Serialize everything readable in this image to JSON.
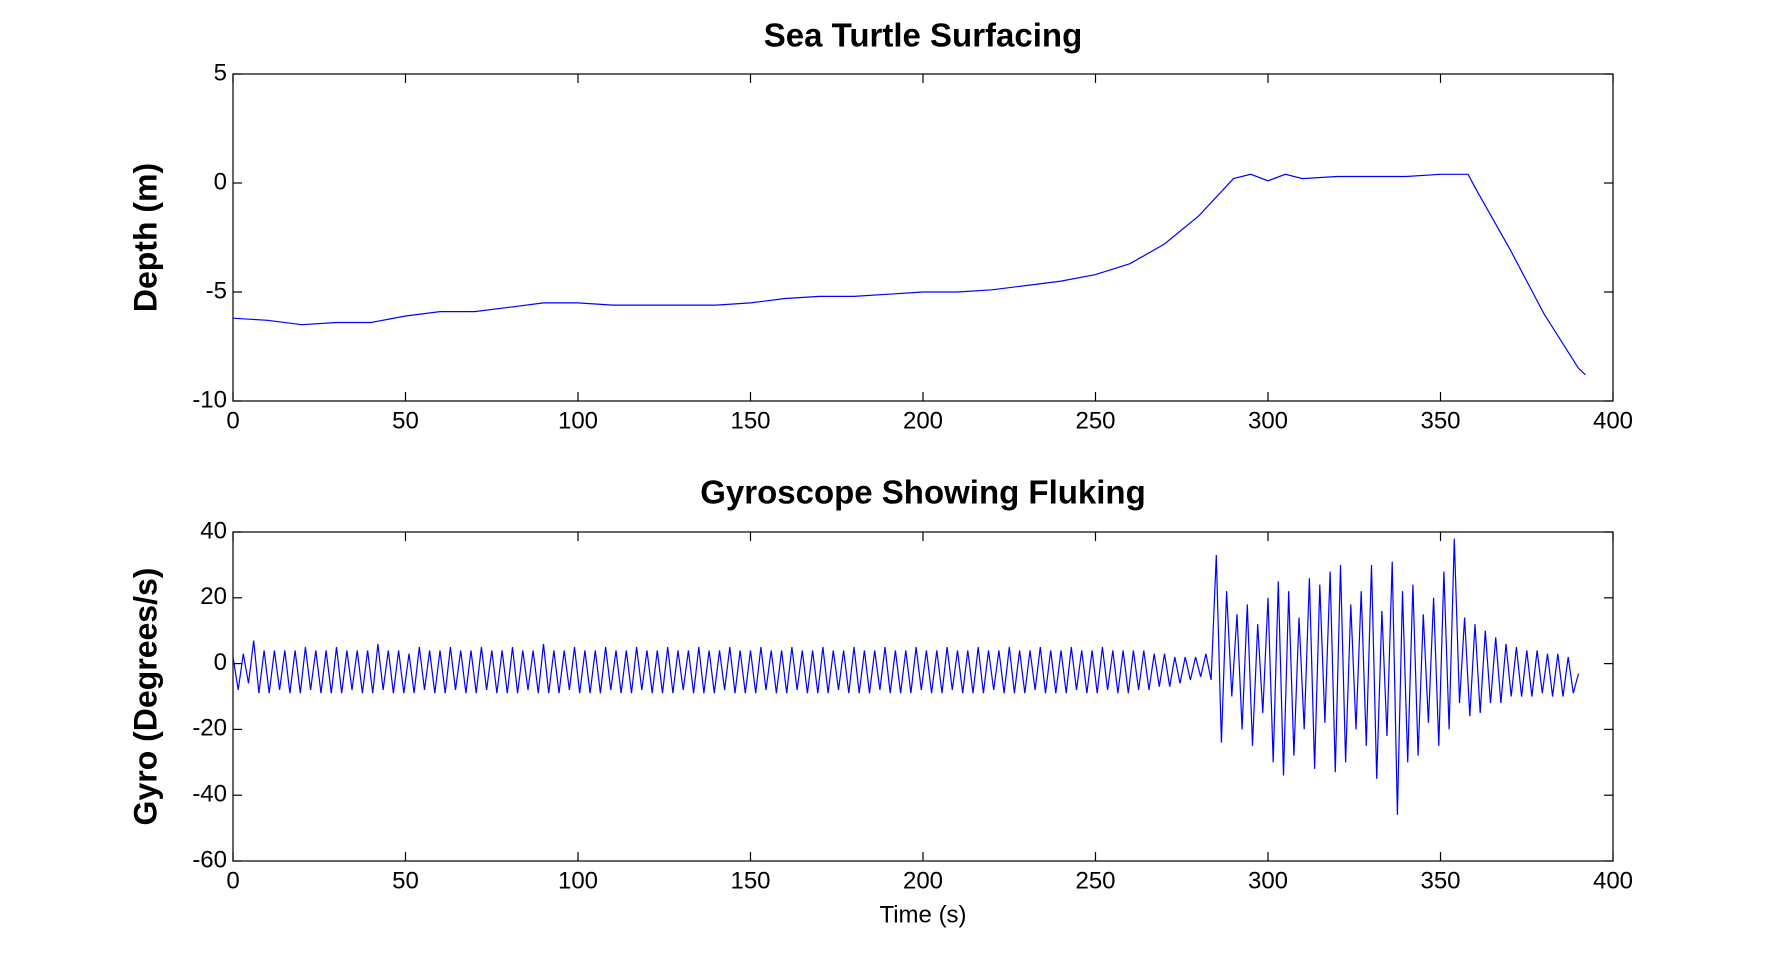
{
  "chart_data": [
    {
      "type": "line",
      "title": "Sea Turtle Surfacing",
      "ylabel": "Depth (m)",
      "color": "#0000ff",
      "x": [
        0,
        10,
        20,
        30,
        40,
        50,
        60,
        70,
        80,
        90,
        100,
        110,
        120,
        130,
        140,
        150,
        160,
        170,
        180,
        190,
        200,
        210,
        220,
        230,
        240,
        250,
        260,
        270,
        280,
        290,
        295,
        300,
        305,
        310,
        320,
        330,
        340,
        350,
        358,
        360,
        370,
        380,
        390,
        392
      ],
      "values": [
        -6.2,
        -6.3,
        -6.5,
        -6.4,
        -6.4,
        -6.1,
        -5.9,
        -5.9,
        -5.7,
        -5.5,
        -5.5,
        -5.6,
        -5.6,
        -5.6,
        -5.6,
        -5.5,
        -5.3,
        -5.2,
        -5.2,
        -5.1,
        -5,
        -5,
        -4.9,
        -4.7,
        -4.5,
        -4.2,
        -3.7,
        -2.8,
        -1.5,
        0.2,
        0.4,
        0.1,
        0.4,
        0.2,
        0.3,
        0.3,
        0.3,
        0.4,
        0.4,
        -0.2,
        -3,
        -6,
        -8.5,
        -8.8
      ],
      "xlim": [
        0,
        400
      ],
      "xticks": [
        0,
        50,
        100,
        150,
        200,
        250,
        300,
        350,
        400
      ],
      "ylim": [
        -10,
        5
      ],
      "yticks": [
        -10,
        -5,
        0,
        5
      ]
    },
    {
      "type": "line",
      "title": "Gyroscope Showing Fluking",
      "ylabel": "Gyro (Degrees/s)",
      "xlabel": "Time (s)",
      "color": "#0000ff",
      "x": [
        0,
        1.5,
        3,
        4.5,
        6,
        7.5,
        9,
        10.5,
        12,
        13.5,
        15,
        16.5,
        18,
        19.5,
        21,
        22.5,
        24,
        25.5,
        27,
        28.5,
        30,
        31.5,
        33,
        34.5,
        36,
        37.5,
        39,
        40.5,
        42,
        43.5,
        45,
        46.5,
        48,
        49.5,
        51,
        52.5,
        54,
        55.5,
        57,
        58.5,
        60,
        61.5,
        63,
        64.5,
        66,
        67.5,
        69,
        70.5,
        72,
        73.5,
        75,
        76.5,
        78,
        79.5,
        81,
        82.5,
        84,
        85.5,
        87,
        88.5,
        90,
        91.5,
        93,
        94.5,
        96,
        97.5,
        99,
        100.5,
        102,
        103.5,
        105,
        106.5,
        108,
        109.5,
        111,
        112.5,
        114,
        115.5,
        117,
        118.5,
        120,
        121.5,
        123,
        124.5,
        126,
        127.5,
        129,
        130.5,
        132,
        133.5,
        135,
        136.5,
        138,
        139.5,
        141,
        142.5,
        144,
        145.5,
        147,
        148.5,
        150,
        151.5,
        153,
        154.5,
        156,
        157.5,
        159,
        160.5,
        162,
        163.5,
        165,
        166.5,
        168,
        169.5,
        171,
        172.5,
        174,
        175.5,
        177,
        178.5,
        180,
        181.5,
        183,
        184.5,
        186,
        187.5,
        189,
        190.5,
        192,
        193.5,
        195,
        196.5,
        198,
        199.5,
        201,
        202.5,
        204,
        205.5,
        207,
        208.5,
        210,
        211.5,
        213,
        214.5,
        216,
        217.5,
        219,
        220.5,
        222,
        223.5,
        225,
        226.5,
        228,
        229.5,
        231,
        232.5,
        234,
        235.5,
        237,
        238.5,
        240,
        241.5,
        243,
        244.5,
        246,
        247.5,
        249,
        250.5,
        252,
        253.5,
        255,
        256.5,
        258,
        259.5,
        261,
        262.5,
        264,
        265.5,
        267,
        268.5,
        270,
        271.5,
        273,
        274.5,
        276,
        277.5,
        279,
        280.5,
        282,
        283.5,
        285,
        286.5,
        288,
        289.5,
        291,
        292.5,
        294,
        295.5,
        297,
        298.5,
        300,
        301.5,
        303,
        304.5,
        306,
        307.5,
        309,
        310.5,
        312,
        313.5,
        315,
        316.5,
        318,
        319.5,
        321,
        322.5,
        324,
        325.5,
        327,
        328.5,
        330,
        331.5,
        333,
        334.5,
        336,
        337.5,
        339,
        340.5,
        342,
        343.5,
        345,
        346.5,
        348,
        349.5,
        351,
        352.5,
        354,
        355.5,
        357,
        358.5,
        360,
        361.5,
        363,
        364.5,
        366,
        367.5,
        369,
        370.5,
        372,
        373.5,
        375,
        376.5,
        378,
        379.5,
        381,
        382.5,
        384,
        385.5,
        387,
        388.5,
        390
      ],
      "values": [
        2,
        -8,
        3,
        -6,
        7,
        -9,
        4,
        -9,
        4,
        -8,
        4,
        -9,
        4,
        -9,
        5,
        -8,
        4,
        -9,
        4,
        -9,
        5,
        -9,
        4,
        -8,
        4,
        -9,
        4,
        -9,
        6,
        -8,
        4,
        -9,
        4,
        -9,
        3,
        -9,
        5,
        -8,
        4,
        -9,
        4,
        -9,
        5,
        -8,
        4,
        -9,
        4,
        -9,
        5,
        -8,
        4,
        -9,
        4,
        -9,
        5,
        -9,
        4,
        -8,
        4,
        -9,
        6,
        -9,
        4,
        -9,
        4,
        -8,
        5,
        -9,
        4,
        -9,
        4,
        -9,
        5,
        -8,
        4,
        -9,
        4,
        -9,
        5,
        -8,
        4,
        -9,
        4,
        -9,
        5,
        -9,
        4,
        -8,
        4,
        -9,
        5,
        -9,
        4,
        -9,
        4,
        -8,
        5,
        -9,
        4,
        -9,
        4,
        -9,
        5,
        -8,
        4,
        -9,
        4,
        -9,
        5,
        -8,
        4,
        -9,
        4,
        -9,
        5,
        -9,
        4,
        -8,
        4,
        -9,
        5,
        -9,
        4,
        -9,
        4,
        -8,
        5,
        -9,
        4,
        -9,
        4,
        -9,
        5,
        -8,
        4,
        -9,
        4,
        -9,
        5,
        -8,
        4,
        -9,
        4,
        -9,
        5,
        -9,
        4,
        -8,
        4,
        -9,
        5,
        -9,
        4,
        -9,
        4,
        -8,
        5,
        -9,
        4,
        -9,
        4,
        -9,
        5,
        -8,
        4,
        -9,
        4,
        -9,
        5,
        -8,
        4,
        -9,
        4,
        -9,
        4,
        -8,
        4,
        -8,
        3,
        -7,
        3,
        -7,
        2,
        -6,
        2,
        -5,
        2,
        -4,
        3,
        -5,
        33,
        -24,
        22,
        -10,
        15,
        -20,
        18,
        -25,
        12,
        -15,
        20,
        -30,
        25,
        -34,
        22,
        -28,
        14,
        -20,
        26,
        -32,
        24,
        -18,
        28,
        -33,
        30,
        -30,
        18,
        -20,
        22,
        -25,
        30,
        -35,
        16,
        -22,
        31,
        -46,
        22,
        -30,
        24,
        -28,
        15,
        -18,
        20,
        -25,
        28,
        -20,
        38,
        -12,
        14,
        -16,
        12,
        -15,
        10,
        -12,
        8,
        -12,
        6,
        -10,
        5,
        -10,
        4,
        -10,
        4,
        -9,
        3,
        -10,
        3,
        -10,
        2,
        -9,
        -3
      ],
      "xlim": [
        0,
        400
      ],
      "xticks": [
        0,
        50,
        100,
        150,
        200,
        250,
        300,
        350,
        400
      ],
      "ylim": [
        -60,
        40
      ],
      "yticks": [
        -60,
        -40,
        -20,
        0,
        20,
        40
      ]
    }
  ]
}
